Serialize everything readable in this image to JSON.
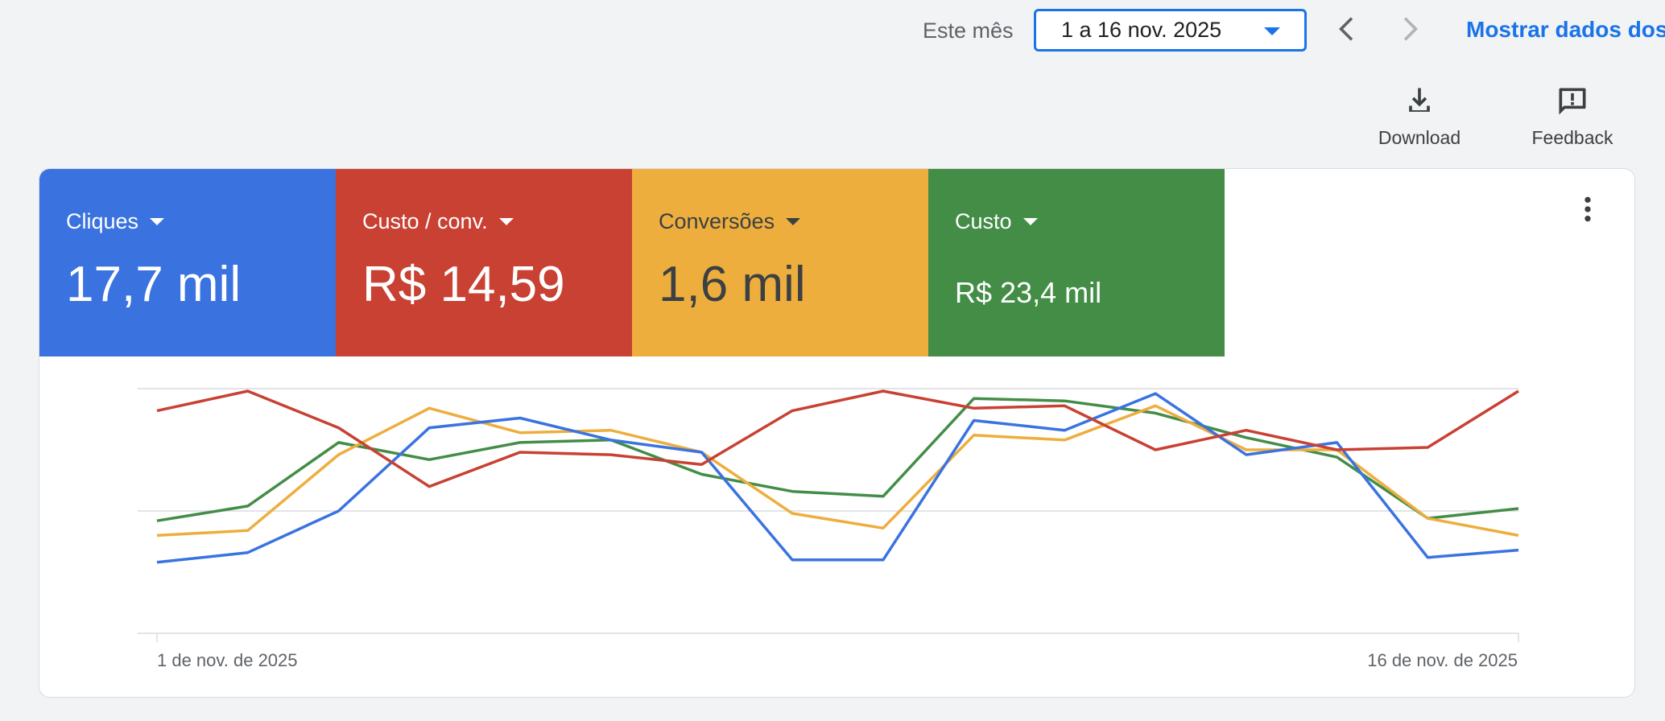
{
  "date_range": {
    "label": "Este mês",
    "selected": "1 a 16 nov. 2025",
    "show_data_link": "Mostrar dados dos"
  },
  "actions": {
    "download": "Download",
    "feedback": "Feedback"
  },
  "metrics": [
    {
      "name": "Cliques",
      "value": "17,7 mil",
      "color": "#3a73e0"
    },
    {
      "name": "Custo / conv.",
      "value": "R$ 14,59",
      "color": "#c84133"
    },
    {
      "name": "Conversões",
      "value": "1,6 mil",
      "color": "#edae3e"
    },
    {
      "name": "Custo",
      "value": "R$ 23,4 mil",
      "color": "#438d47"
    }
  ],
  "chart_data": {
    "type": "line",
    "x": [
      "1 de nov. de 2025",
      "2",
      "3",
      "4",
      "5",
      "6",
      "7",
      "8",
      "9",
      "10",
      "11",
      "12",
      "13",
      "14",
      "15",
      "16 de nov. de 2025"
    ],
    "x_tick_labels": [
      "1 de nov. de 2025",
      "16 de nov. de 2025"
    ],
    "ylim": [
      0,
      100
    ],
    "grid": true,
    "series": [
      {
        "name": "Cliques",
        "color": "#3a73e0",
        "values": [
          29,
          33,
          50,
          84,
          88,
          79,
          74,
          30,
          30,
          87,
          83,
          98,
          73,
          78,
          31,
          34
        ]
      },
      {
        "name": "Custo / conv.",
        "color": "#c84133",
        "values": [
          91,
          99,
          84,
          60,
          74,
          73,
          69,
          91,
          99,
          92,
          93,
          75,
          83,
          75,
          76,
          99
        ]
      },
      {
        "name": "Conversões",
        "color": "#edae3e",
        "values": [
          40,
          42,
          73,
          92,
          82,
          83,
          74,
          49,
          43,
          81,
          79,
          93,
          75,
          75,
          47,
          40
        ]
      },
      {
        "name": "Custo",
        "color": "#438d47",
        "values": [
          46,
          52,
          78,
          71,
          78,
          79,
          65,
          58,
          56,
          96,
          95,
          90,
          80,
          72,
          47,
          51
        ]
      }
    ]
  }
}
